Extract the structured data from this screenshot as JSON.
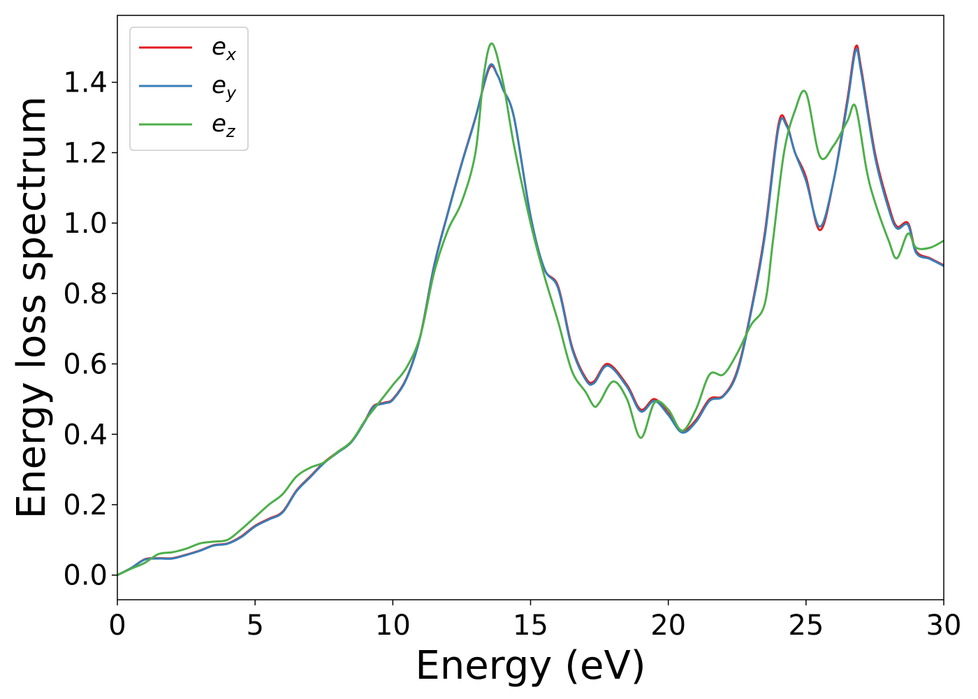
{
  "chart_data": {
    "type": "line",
    "title": "",
    "xlabel": "Energy (eV)",
    "ylabel": "Energy loss spectrum",
    "xlim": [
      0,
      30
    ],
    "ylim": [
      -0.07,
      1.59
    ],
    "xticks": [
      0,
      5,
      10,
      15,
      20,
      25,
      30
    ],
    "yticks": [
      0.0,
      0.2,
      0.4,
      0.6,
      0.8,
      1.0,
      1.2,
      1.4
    ],
    "xtick_labels": [
      "0",
      "5",
      "10",
      "15",
      "20",
      "25",
      "30"
    ],
    "ytick_labels": [
      "0.0",
      "0.2",
      "0.4",
      "0.6",
      "0.8",
      "1.0",
      "1.2",
      "1.4"
    ],
    "grid": false,
    "legend_position": "top-left",
    "series": [
      {
        "name": "e_x",
        "legend_base": "e",
        "legend_sub": "x",
        "color": "#e41a1c",
        "points": [
          [
            0,
            0.0
          ],
          [
            0.5,
            0.02
          ],
          [
            1,
            0.045
          ],
          [
            1.5,
            0.048
          ],
          [
            2,
            0.048
          ],
          [
            2.5,
            0.058
          ],
          [
            3,
            0.07
          ],
          [
            3.5,
            0.085
          ],
          [
            4,
            0.09
          ],
          [
            4.5,
            0.11
          ],
          [
            5,
            0.14
          ],
          [
            5.5,
            0.16
          ],
          [
            6,
            0.18
          ],
          [
            6.5,
            0.24
          ],
          [
            7,
            0.28
          ],
          [
            7.5,
            0.32
          ],
          [
            8,
            0.35
          ],
          [
            8.5,
            0.38
          ],
          [
            9,
            0.44
          ],
          [
            9.3,
            0.48
          ],
          [
            9.7,
            0.49
          ],
          [
            10,
            0.5
          ],
          [
            10.5,
            0.56
          ],
          [
            11,
            0.68
          ],
          [
            11.5,
            0.88
          ],
          [
            12,
            1.03
          ],
          [
            12.5,
            1.17
          ],
          [
            13,
            1.3
          ],
          [
            13.5,
            1.44
          ],
          [
            13.8,
            1.42
          ],
          [
            14,
            1.38
          ],
          [
            14.4,
            1.3
          ],
          [
            15,
            1.02
          ],
          [
            15.5,
            0.87
          ],
          [
            16,
            0.82
          ],
          [
            16.5,
            0.65
          ],
          [
            17,
            0.56
          ],
          [
            17.3,
            0.55
          ],
          [
            17.8,
            0.6
          ],
          [
            18.5,
            0.54
          ],
          [
            19,
            0.47
          ],
          [
            19.5,
            0.5
          ],
          [
            20,
            0.46
          ],
          [
            20.5,
            0.41
          ],
          [
            21,
            0.44
          ],
          [
            21.5,
            0.5
          ],
          [
            22,
            0.51
          ],
          [
            22.5,
            0.58
          ],
          [
            23,
            0.75
          ],
          [
            23.5,
            0.97
          ],
          [
            24,
            1.28
          ],
          [
            24.3,
            1.28
          ],
          [
            24.6,
            1.2
          ],
          [
            25,
            1.13
          ],
          [
            25.5,
            0.98
          ],
          [
            26,
            1.12
          ],
          [
            26.5,
            1.35
          ],
          [
            26.8,
            1.5
          ],
          [
            27,
            1.44
          ],
          [
            27.5,
            1.2
          ],
          [
            28,
            1.05
          ],
          [
            28.3,
            0.99
          ],
          [
            28.7,
            1.0
          ],
          [
            29,
            0.92
          ],
          [
            29.5,
            0.9
          ],
          [
            30,
            0.88
          ]
        ]
      },
      {
        "name": "e_y",
        "legend_base": "e",
        "legend_sub": "y",
        "color": "#377eb8",
        "points": [
          [
            0,
            0.0
          ],
          [
            0.5,
            0.02
          ],
          [
            1,
            0.044
          ],
          [
            1.5,
            0.047
          ],
          [
            2,
            0.047
          ],
          [
            2.5,
            0.057
          ],
          [
            3,
            0.069
          ],
          [
            3.5,
            0.084
          ],
          [
            4,
            0.089
          ],
          [
            4.5,
            0.108
          ],
          [
            5,
            0.138
          ],
          [
            5.5,
            0.158
          ],
          [
            6,
            0.178
          ],
          [
            6.5,
            0.238
          ],
          [
            7,
            0.278
          ],
          [
            7.5,
            0.318
          ],
          [
            8,
            0.348
          ],
          [
            8.5,
            0.378
          ],
          [
            9,
            0.438
          ],
          [
            9.3,
            0.478
          ],
          [
            9.7,
            0.488
          ],
          [
            10,
            0.498
          ],
          [
            10.5,
            0.558
          ],
          [
            11,
            0.678
          ],
          [
            11.5,
            0.878
          ],
          [
            12,
            1.028
          ],
          [
            12.5,
            1.168
          ],
          [
            13,
            1.298
          ],
          [
            13.5,
            1.445
          ],
          [
            13.8,
            1.42
          ],
          [
            14,
            1.38
          ],
          [
            14.4,
            1.3
          ],
          [
            15,
            1.02
          ],
          [
            15.5,
            0.87
          ],
          [
            16,
            0.815
          ],
          [
            16.5,
            0.645
          ],
          [
            17,
            0.555
          ],
          [
            17.3,
            0.545
          ],
          [
            17.8,
            0.595
          ],
          [
            18.5,
            0.535
          ],
          [
            19,
            0.465
          ],
          [
            19.5,
            0.495
          ],
          [
            20,
            0.455
          ],
          [
            20.5,
            0.405
          ],
          [
            21,
            0.435
          ],
          [
            21.5,
            0.495
          ],
          [
            22,
            0.508
          ],
          [
            22.5,
            0.575
          ],
          [
            23,
            0.745
          ],
          [
            23.5,
            0.96
          ],
          [
            24,
            1.27
          ],
          [
            24.3,
            1.275
          ],
          [
            24.6,
            1.2
          ],
          [
            25,
            1.12
          ],
          [
            25.5,
            0.99
          ],
          [
            26,
            1.12
          ],
          [
            26.5,
            1.34
          ],
          [
            26.8,
            1.49
          ],
          [
            27,
            1.43
          ],
          [
            27.5,
            1.19
          ],
          [
            28,
            1.04
          ],
          [
            28.3,
            0.985
          ],
          [
            28.7,
            0.995
          ],
          [
            29,
            0.915
          ],
          [
            29.5,
            0.898
          ],
          [
            30,
            0.878
          ]
        ]
      },
      {
        "name": "e_z",
        "legend_base": "e",
        "legend_sub": "z",
        "color": "#4daf4a",
        "points": [
          [
            0,
            0.0
          ],
          [
            0.5,
            0.018
          ],
          [
            1,
            0.035
          ],
          [
            1.5,
            0.06
          ],
          [
            2,
            0.065
          ],
          [
            2.5,
            0.075
          ],
          [
            3,
            0.09
          ],
          [
            3.5,
            0.095
          ],
          [
            4,
            0.1
          ],
          [
            4.5,
            0.13
          ],
          [
            5,
            0.165
          ],
          [
            5.5,
            0.2
          ],
          [
            6,
            0.23
          ],
          [
            6.5,
            0.28
          ],
          [
            7,
            0.305
          ],
          [
            7.5,
            0.32
          ],
          [
            8,
            0.35
          ],
          [
            8.5,
            0.38
          ],
          [
            9,
            0.44
          ],
          [
            9.5,
            0.49
          ],
          [
            10,
            0.54
          ],
          [
            10.5,
            0.59
          ],
          [
            11,
            0.68
          ],
          [
            11.5,
            0.86
          ],
          [
            12,
            0.98
          ],
          [
            12.5,
            1.06
          ],
          [
            13,
            1.2
          ],
          [
            13.3,
            1.42
          ],
          [
            13.6,
            1.51
          ],
          [
            14,
            1.4
          ],
          [
            14.4,
            1.22
          ],
          [
            15,
            1.0
          ],
          [
            15.5,
            0.85
          ],
          [
            16,
            0.72
          ],
          [
            16.5,
            0.58
          ],
          [
            17,
            0.52
          ],
          [
            17.3,
            0.48
          ],
          [
            17.5,
            0.49
          ],
          [
            18,
            0.55
          ],
          [
            18.5,
            0.5
          ],
          [
            19,
            0.39
          ],
          [
            19.5,
            0.49
          ],
          [
            20,
            0.47
          ],
          [
            20.5,
            0.41
          ],
          [
            21,
            0.47
          ],
          [
            21.5,
            0.57
          ],
          [
            22,
            0.57
          ],
          [
            22.5,
            0.63
          ],
          [
            23,
            0.71
          ],
          [
            23.5,
            0.77
          ],
          [
            23.8,
            0.95
          ],
          [
            24.2,
            1.2
          ],
          [
            24.6,
            1.32
          ],
          [
            25,
            1.37
          ],
          [
            25.5,
            1.19
          ],
          [
            26,
            1.22
          ],
          [
            26.5,
            1.29
          ],
          [
            26.8,
            1.33
          ],
          [
            27.2,
            1.15
          ],
          [
            27.5,
            1.06
          ],
          [
            28,
            0.95
          ],
          [
            28.3,
            0.9
          ],
          [
            28.7,
            0.97
          ],
          [
            29,
            0.93
          ],
          [
            29.5,
            0.93
          ],
          [
            30,
            0.95
          ]
        ]
      }
    ]
  }
}
